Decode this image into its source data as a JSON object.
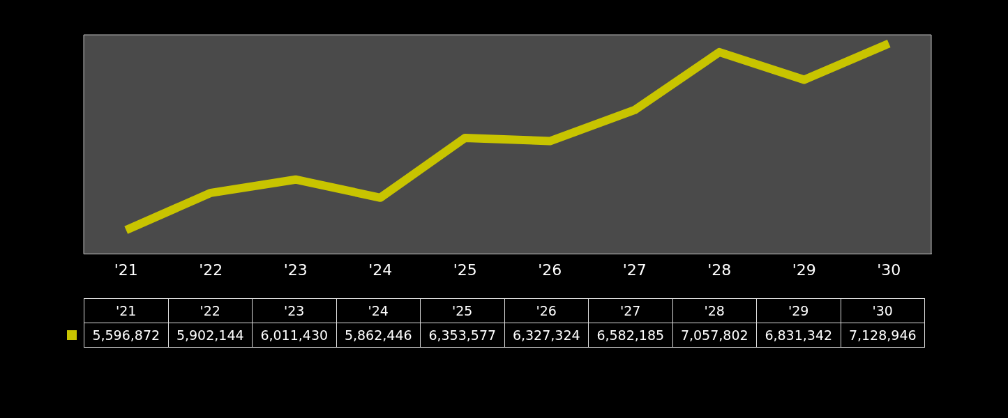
{
  "chart_data": {
    "type": "line",
    "categories": [
      "'21",
      "'22",
      "'23",
      "'24",
      "'25",
      "'26",
      "'27",
      "'28",
      "'29",
      "'30"
    ],
    "series": [
      {
        "color": "#c8c400",
        "values": [
          5596872,
          5902144,
          6011430,
          5862446,
          6353577,
          6327324,
          6582185,
          7057802,
          6831342,
          7128946
        ],
        "value_labels": [
          "5,596,872",
          "5,902,144",
          "6,011,430",
          "5,862,446",
          "6,353,577",
          "6,327,324",
          "6,582,185",
          "7,057,802",
          "6,831,342",
          "7,128,946"
        ]
      }
    ],
    "grid": false,
    "legend": false,
    "marker": "none",
    "tick_labels": "x"
  }
}
